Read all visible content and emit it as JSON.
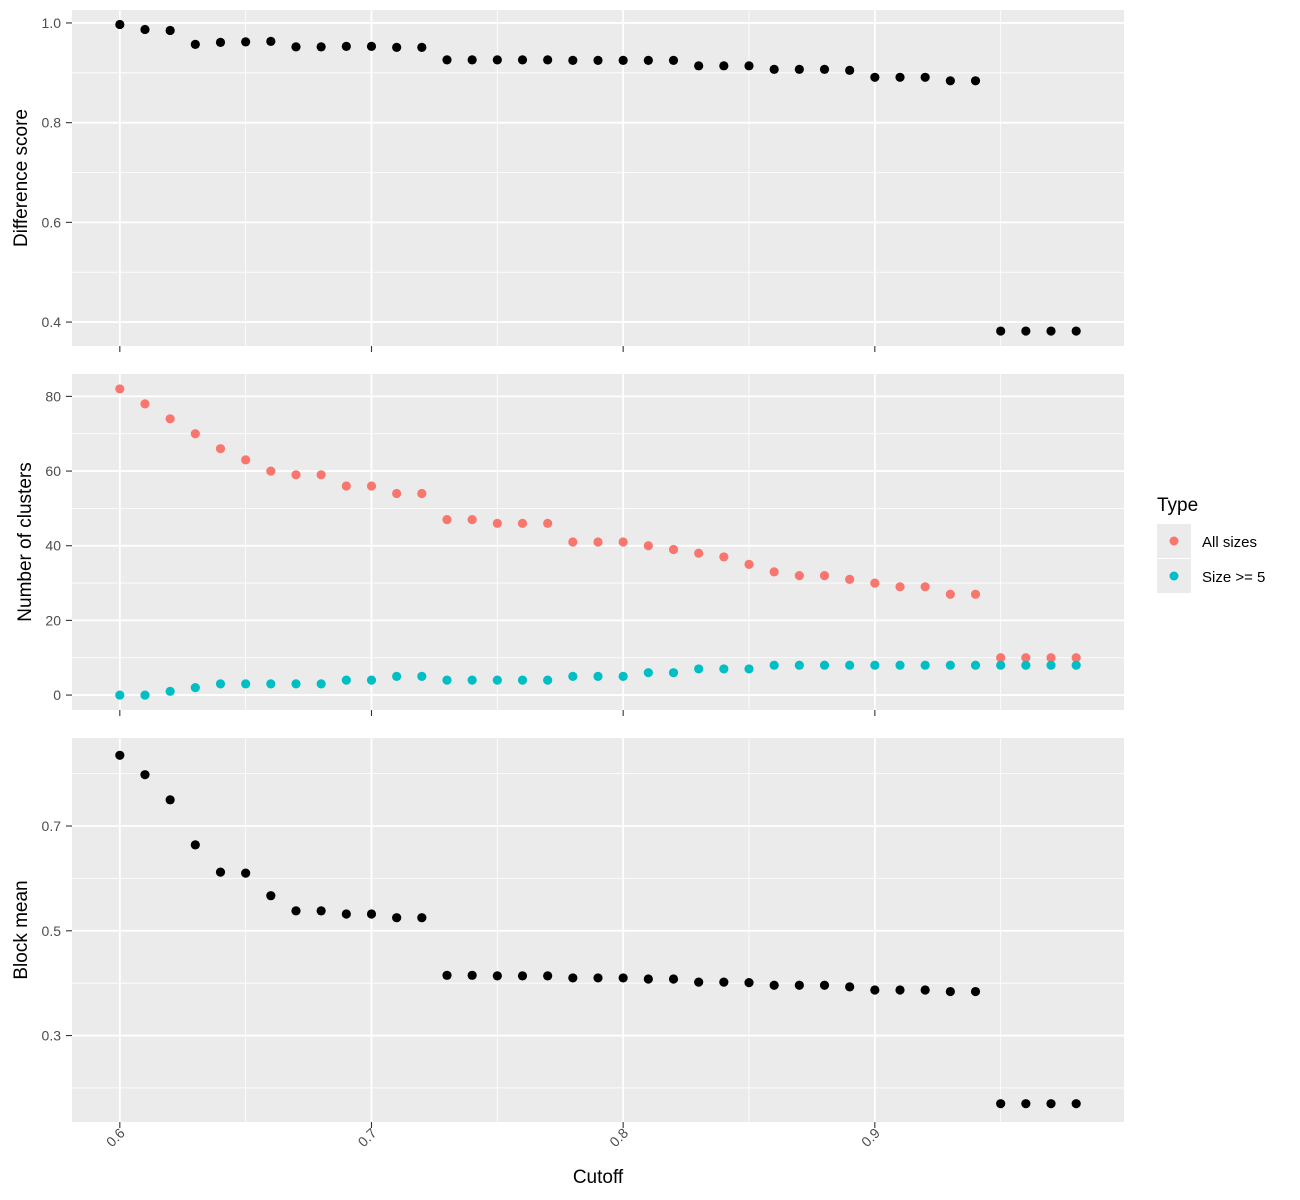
{
  "chart_data": {
    "type": "scatter",
    "x_axis": {
      "label": "Cutoff",
      "ticks": [
        "0.6",
        "0.7",
        "0.8",
        "0.9"
      ],
      "range": [
        0.581,
        0.999
      ]
    },
    "x": [
      0.6,
      0.61,
      0.62,
      0.63,
      0.64,
      0.65,
      0.66,
      0.67,
      0.68,
      0.69,
      0.7,
      0.71,
      0.72,
      0.73,
      0.74,
      0.75,
      0.76,
      0.77,
      0.78,
      0.79,
      0.8,
      0.81,
      0.82,
      0.83,
      0.84,
      0.85,
      0.86,
      0.87,
      0.88,
      0.89,
      0.9,
      0.91,
      0.92,
      0.93,
      0.94,
      0.95,
      0.96,
      0.97,
      0.98
    ],
    "grid": true,
    "panels": [
      {
        "ylabel": "Difference score",
        "ylim": [
          0.352,
          1.026
        ],
        "yticks": [
          "0.4",
          "0.6",
          "0.8",
          "1.0"
        ],
        "ytick_values": [
          0.4,
          0.6,
          0.8,
          1.0
        ],
        "series": [
          {
            "color": "#000000",
            "values": [
              0.997,
              0.987,
              0.985,
              0.957,
              0.961,
              0.962,
              0.963,
              0.952,
              0.952,
              0.953,
              0.953,
              0.951,
              0.951,
              0.926,
              0.926,
              0.926,
              0.926,
              0.926,
              0.925,
              0.925,
              0.925,
              0.925,
              0.925,
              0.914,
              0.914,
              0.914,
              0.907,
              0.907,
              0.907,
              0.905,
              0.891,
              0.891,
              0.891,
              0.884,
              0.884,
              0.382,
              0.382,
              0.382,
              0.382
            ]
          }
        ]
      },
      {
        "ylabel": "Number of clusters",
        "ylim": [
          -4.0,
          86.0
        ],
        "yticks": [
          "0",
          "20",
          "40",
          "60",
          "80"
        ],
        "ytick_values": [
          0,
          20,
          40,
          60,
          80
        ],
        "series": [
          {
            "name": "All sizes",
            "color": "#F8766D",
            "values": [
              82,
              78,
              74,
              70,
              66,
              63,
              60,
              59,
              59,
              56,
              56,
              54,
              54,
              47,
              47,
              46,
              46,
              46,
              41,
              41,
              41,
              40,
              39,
              38,
              37,
              35,
              33,
              32,
              32,
              31,
              30,
              29,
              29,
              27,
              27,
              10,
              10,
              10,
              10
            ]
          },
          {
            "name": "Size >= 5",
            "color": "#00BFC4",
            "values": [
              0,
              0,
              1,
              2,
              3,
              3,
              3,
              3,
              3,
              4,
              4,
              5,
              5,
              4,
              4,
              4,
              4,
              4,
              5,
              5,
              5,
              6,
              6,
              7,
              7,
              7,
              8,
              8,
              8,
              8,
              8,
              8,
              8,
              8,
              8,
              8,
              8,
              8,
              8
            ]
          }
        ]
      },
      {
        "ylabel": "Block mean",
        "ylim": [
          0.135,
          0.868
        ],
        "yticks": [
          "0.3",
          "0.5",
          "0.7"
        ],
        "ytick_values": [
          0.3,
          0.5,
          0.7
        ],
        "series": [
          {
            "color": "#000000",
            "values": [
              0.835,
              0.798,
              0.75,
              0.664,
              0.612,
              0.61,
              0.567,
              0.538,
              0.538,
              0.532,
              0.532,
              0.525,
              0.525,
              0.415,
              0.415,
              0.414,
              0.414,
              0.414,
              0.41,
              0.41,
              0.41,
              0.408,
              0.408,
              0.402,
              0.402,
              0.401,
              0.396,
              0.396,
              0.396,
              0.393,
              0.387,
              0.387,
              0.387,
              0.384,
              0.384,
              0.17,
              0.17,
              0.17,
              0.17
            ]
          }
        ]
      }
    ],
    "legend": {
      "title": "Type",
      "placement": "right",
      "entries": [
        {
          "label": "All sizes",
          "color": "#F8766D"
        },
        {
          "label": "Size >= 5",
          "color": "#00BFC4"
        }
      ]
    }
  }
}
